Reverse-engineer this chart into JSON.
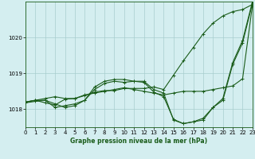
{
  "title": "Graphe pression niveau de la mer (hPa)",
  "bg_color": "#d4eef0",
  "line_color": "#1a5c1a",
  "grid_color": "#a8cece",
  "x_min": 0,
  "x_max": 23,
  "y_min": 1017.5,
  "y_max": 1021.0,
  "yticks": [
    1018,
    1019,
    1020
  ],
  "xticks": [
    0,
    1,
    2,
    3,
    4,
    5,
    6,
    7,
    8,
    9,
    10,
    11,
    12,
    13,
    14,
    15,
    16,
    17,
    18,
    19,
    20,
    21,
    22,
    23
  ],
  "series": [
    [
      1018.2,
      1018.25,
      1018.3,
      1018.35,
      1018.3,
      1018.3,
      1018.4,
      1018.45,
      1018.5,
      1018.55,
      1018.6,
      1018.55,
      1018.5,
      1018.45,
      1018.4,
      1018.45,
      1018.5,
      1018.5,
      1018.5,
      1018.55,
      1018.6,
      1018.65,
      1018.85,
      1020.9
    ],
    [
      1018.18,
      1018.22,
      1018.25,
      1018.15,
      1018.05,
      1018.1,
      1018.25,
      1018.55,
      1018.72,
      1018.78,
      1018.75,
      1018.78,
      1018.75,
      1018.48,
      1018.35,
      1017.72,
      1017.6,
      1017.65,
      1017.7,
      1018.05,
      1018.25,
      1019.25,
      1019.85,
      1020.95
    ],
    [
      1018.2,
      1018.25,
      1018.25,
      1018.05,
      1018.1,
      1018.15,
      1018.25,
      1018.62,
      1018.78,
      1018.83,
      1018.83,
      1018.78,
      1018.78,
      1018.55,
      1018.45,
      1017.7,
      1017.6,
      1017.65,
      1017.75,
      1018.05,
      1018.3,
      1019.3,
      1019.92,
      1021.0
    ],
    [
      1018.2,
      1018.25,
      1018.18,
      1018.12,
      1018.28,
      1018.3,
      1018.38,
      1018.48,
      1018.52,
      1018.52,
      1018.58,
      1018.58,
      1018.58,
      1018.62,
      1018.55,
      1018.95,
      1019.35,
      1019.72,
      1020.1,
      1020.4,
      1020.6,
      1020.72,
      1020.78,
      1020.92
    ]
  ]
}
